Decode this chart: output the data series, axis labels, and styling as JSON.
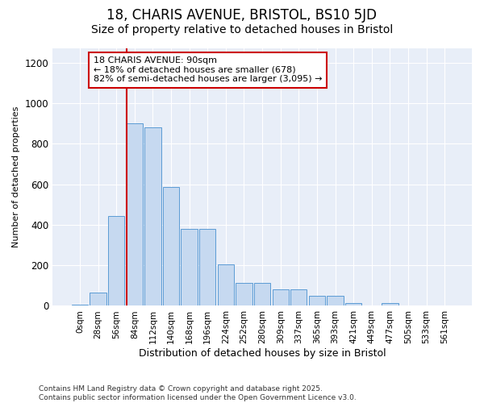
{
  "title_line1": "18, CHARIS AVENUE, BRISTOL, BS10 5JD",
  "title_line2": "Size of property relative to detached houses in Bristol",
  "xlabel": "Distribution of detached houses by size in Bristol",
  "ylabel": "Number of detached properties",
  "bar_labels": [
    "0sqm",
    "28sqm",
    "56sqm",
    "84sqm",
    "112sqm",
    "140sqm",
    "168sqm",
    "196sqm",
    "224sqm",
    "252sqm",
    "280sqm",
    "309sqm",
    "337sqm",
    "365sqm",
    "393sqm",
    "421sqm",
    "449sqm",
    "477sqm",
    "505sqm",
    "533sqm",
    "561sqm"
  ],
  "bar_values": [
    5,
    65,
    445,
    900,
    880,
    585,
    380,
    380,
    205,
    115,
    115,
    80,
    80,
    50,
    48,
    15,
    0,
    15,
    0,
    0,
    0
  ],
  "bar_color": "#c6d9f0",
  "bar_edgecolor": "#5b9bd5",
  "vline_x_index": 3,
  "vline_color": "#cc0000",
  "annotation_text": "18 CHARIS AVENUE: 90sqm\n← 18% of detached houses are smaller (678)\n82% of semi-detached houses are larger (3,095) →",
  "annotation_box_edgecolor": "#cc0000",
  "annotation_box_facecolor": "white",
  "ylim": [
    0,
    1270
  ],
  "yticks": [
    0,
    200,
    400,
    600,
    800,
    1000,
    1200
  ],
  "footer_text": "Contains HM Land Registry data © Crown copyright and database right 2025.\nContains public sector information licensed under the Open Government Licence v3.0.",
  "bg_color": "#ffffff",
  "plot_bg_color": "#e8eef8",
  "grid_color": "#ffffff",
  "title1_fontsize": 12,
  "title2_fontsize": 10,
  "ylabel_fontsize": 8,
  "xlabel_fontsize": 9,
  "tick_fontsize": 7.5,
  "footer_fontsize": 6.5
}
